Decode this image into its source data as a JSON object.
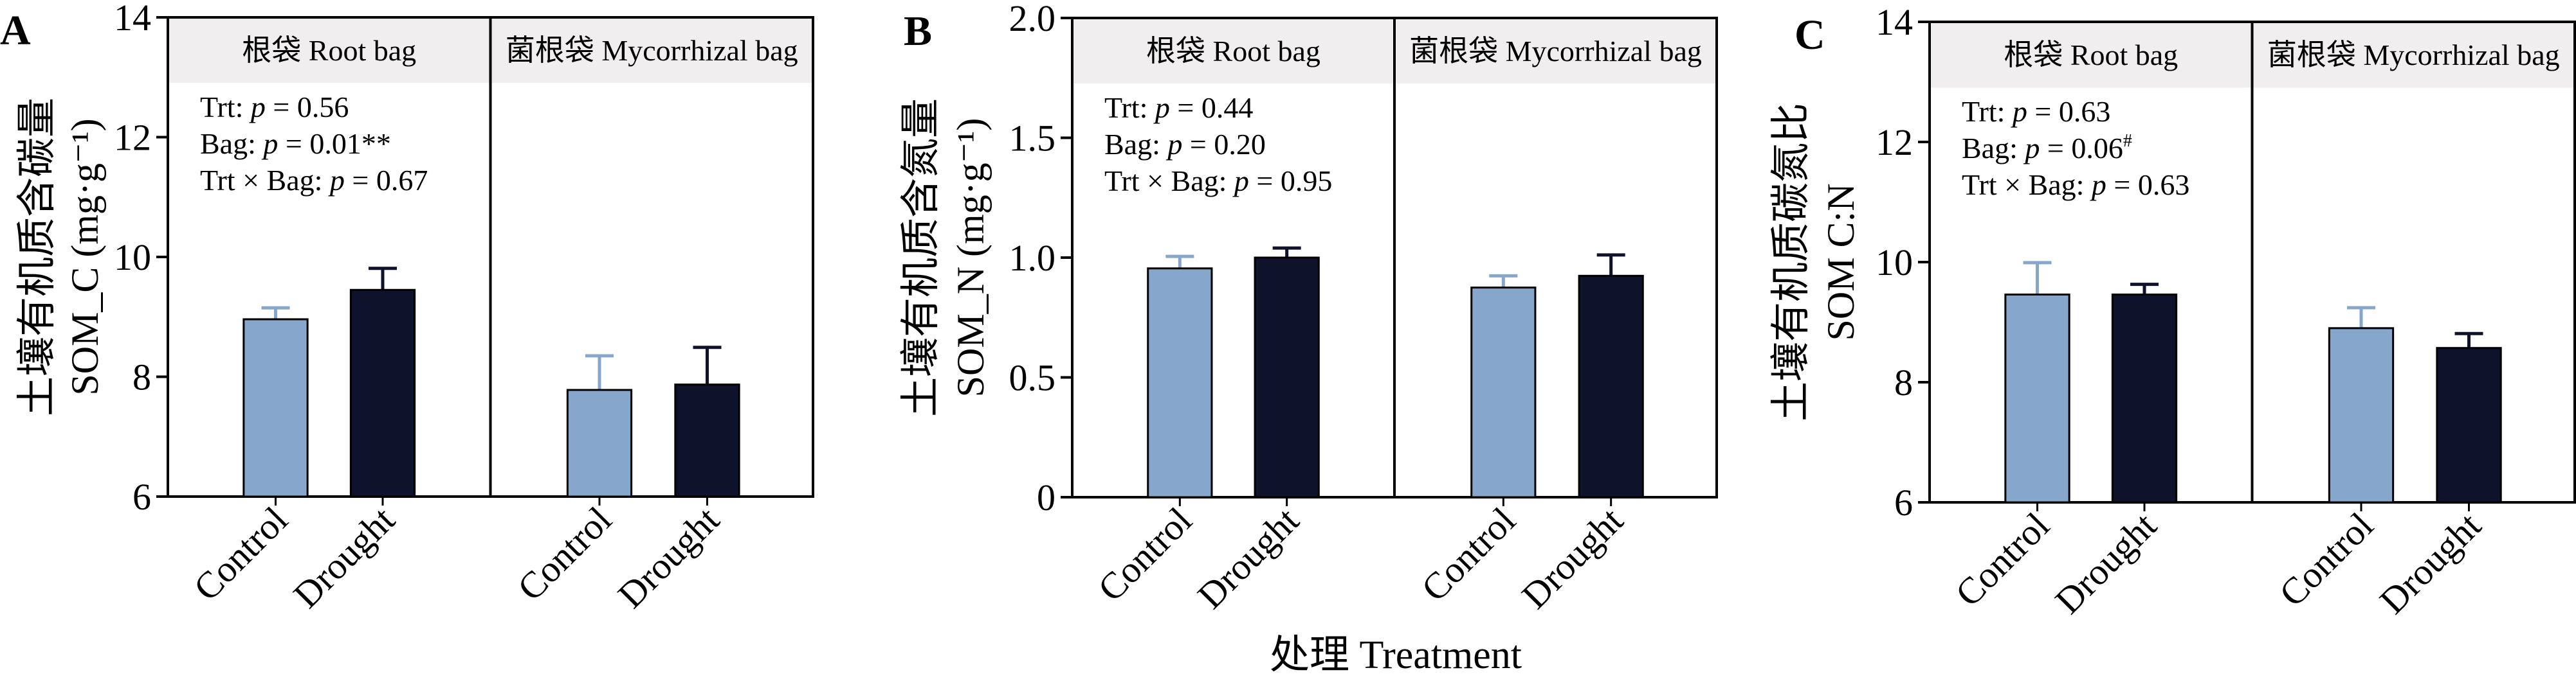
{
  "colors": {
    "control": "#86a7cb",
    "drought": "#0e122b",
    "header_bg": "#f0eeee",
    "axis": "#000000"
  },
  "xlabel": "处理 Treatment",
  "chart_data": [
    {
      "panel": "A",
      "type": "bar",
      "ylabel_cn": "土壤有机质含碳量",
      "ylabel_en": "SOM_C (mg·g⁻¹)",
      "ylim": [
        6,
        14
      ],
      "yticks": [
        "6",
        "8",
        "10",
        "12",
        "14"
      ],
      "ytick_values": [
        6,
        8,
        10,
        12,
        14
      ],
      "facets": [
        {
          "label": "根袋 Root bag",
          "categories": [
            "Control",
            "Drought"
          ],
          "values": [
            8.96,
            9.45
          ],
          "errors": [
            0.19,
            0.36
          ]
        },
        {
          "label": "菌根袋 Mycorrhizal bag",
          "categories": [
            "Control",
            "Drought"
          ],
          "values": [
            7.78,
            7.87
          ],
          "errors": [
            0.57,
            0.62
          ]
        }
      ],
      "stats": [
        {
          "prefix": "Trt: ",
          "p": "p",
          "value": " = 0.56",
          "sup": ""
        },
        {
          "prefix": "Bag: ",
          "p": "p",
          "value": " = 0.01**",
          "sup": ""
        },
        {
          "prefix": "Trt × Bag: ",
          "p": "p",
          "value": " = 0.67",
          "sup": ""
        }
      ]
    },
    {
      "panel": "B",
      "type": "bar",
      "ylabel_cn": "土壤有机质含氮量",
      "ylabel_en": "SOM_N (mg·g⁻¹)",
      "ylim": [
        0,
        2
      ],
      "yticks": [
        "0",
        "0.5",
        "1.0",
        "1.5",
        "2.0"
      ],
      "ytick_values": [
        0,
        0.5,
        1.0,
        1.5,
        2.0
      ],
      "facets": [
        {
          "label": "根袋 Root bag",
          "categories": [
            "Control",
            "Drought"
          ],
          "values": [
            0.955,
            1.0
          ],
          "errors": [
            0.05,
            0.04
          ]
        },
        {
          "label": "菌根袋 Mycorrhizal bag",
          "categories": [
            "Control",
            "Drought"
          ],
          "values": [
            0.875,
            0.924
          ],
          "errors": [
            0.049,
            0.087
          ]
        }
      ],
      "stats": [
        {
          "prefix": "Trt: ",
          "p": "p",
          "value": " = 0.44",
          "sup": ""
        },
        {
          "prefix": "Bag: ",
          "p": "p",
          "value": " = 0.20",
          "sup": ""
        },
        {
          "prefix": "Trt × Bag: ",
          "p": "p",
          "value": " = 0.95",
          "sup": ""
        }
      ]
    },
    {
      "panel": "C",
      "type": "bar",
      "ylabel_cn": "土壤有机质碳氮比",
      "ylabel_en": "SOM C:N",
      "ylim": [
        6,
        14
      ],
      "yticks": [
        "6",
        "8",
        "10",
        "12",
        "14"
      ],
      "ytick_values": [
        6,
        8,
        10,
        12,
        14
      ],
      "facets": [
        {
          "label": "根袋 Root bag",
          "categories": [
            "Control",
            "Drought"
          ],
          "values": [
            9.46,
            9.46
          ],
          "errors": [
            0.53,
            0.17
          ]
        },
        {
          "label": "菌根袋 Mycorrhizal bag",
          "categories": [
            "Control",
            "Drought"
          ],
          "values": [
            8.9,
            8.57
          ],
          "errors": [
            0.34,
            0.24
          ]
        }
      ],
      "stats": [
        {
          "prefix": "Trt: ",
          "p": "p",
          "value": " = 0.63",
          "sup": ""
        },
        {
          "prefix": "Bag: ",
          "p": "p",
          "value": " = 0.06",
          "sup": "#"
        },
        {
          "prefix": "Trt × Bag: ",
          "p": "p",
          "value": " = 0.63",
          "sup": ""
        }
      ]
    }
  ]
}
